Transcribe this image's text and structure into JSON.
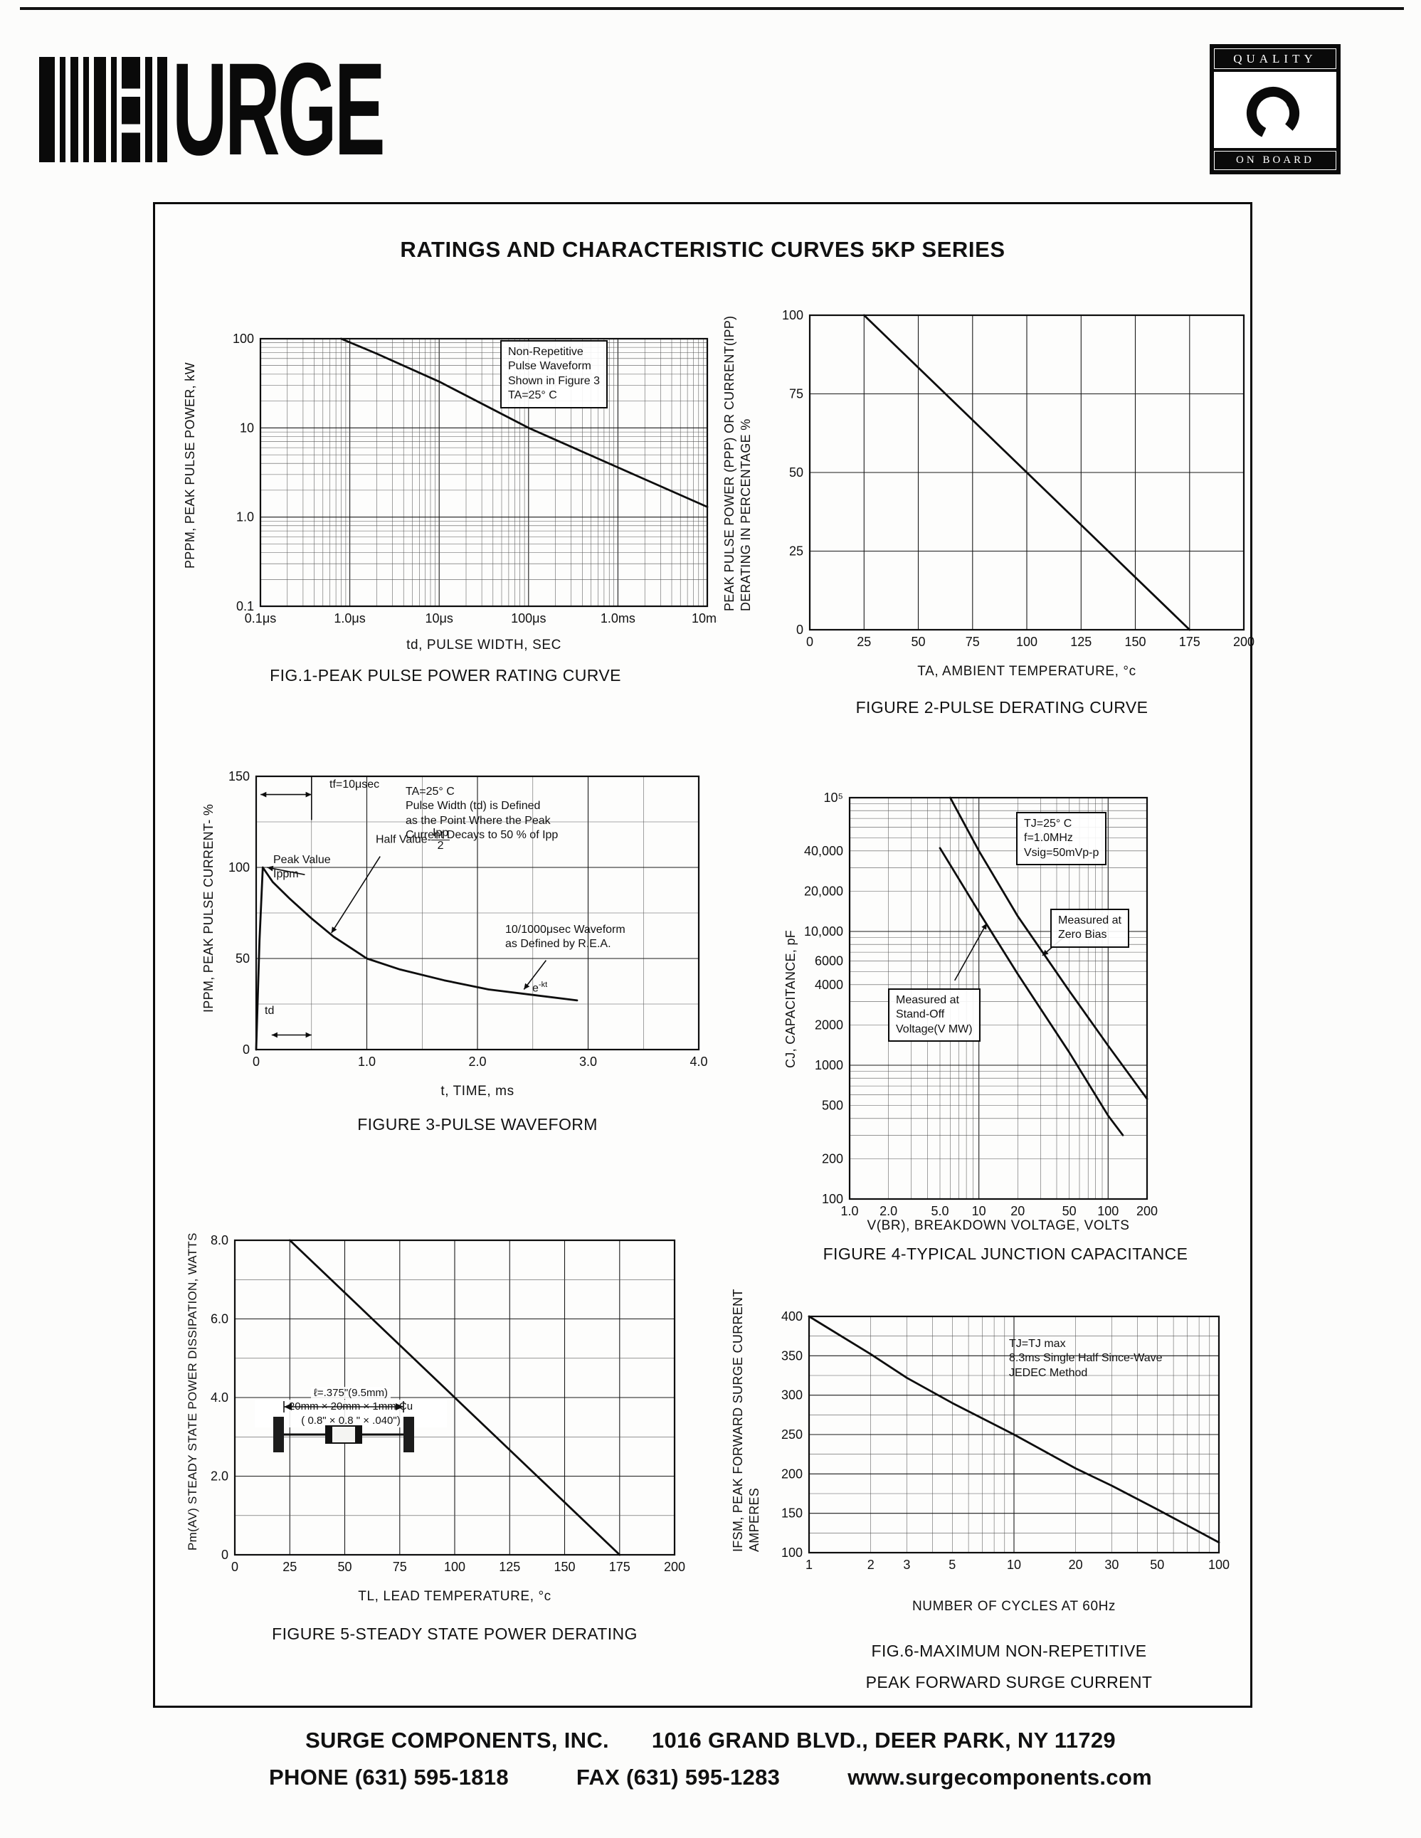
{
  "page": {
    "title": "RATINGS AND CHARACTERISTIC CURVES 5KP SERIES"
  },
  "colors": {
    "ink": "#111111",
    "paper": "#fcfcfb"
  },
  "header": {
    "logo_text": "URGE",
    "quality_badge": {
      "top": "QUALITY",
      "bottom": "ON BOARD"
    }
  },
  "footer": {
    "company": "SURGE COMPONENTS, INC.",
    "address": "1016 GRAND BLVD., DEER PARK, NY  11729",
    "phone": "PHONE (631) 595-1818",
    "fax": "FAX (631) 595-1283",
    "website": "www.surgecomponents.com"
  },
  "figures": {
    "fig1": {
      "caption": "FIG.1-PEAK PULSE POWER RATING CURVE",
      "xlabel": "td, PULSE WIDTH, SEC",
      "ylabel": "PPPM, PEAK PULSE POWER, kW",
      "note": "Non-Repetitive\nPulse Waveform\nShown in Figure 3\nTA=25° C"
    },
    "fig2": {
      "caption": "FIGURE 2-PULSE DERATING CURVE",
      "xlabel": "TA, AMBIENT  TEMPERATURE, °c",
      "ylabel": "PEAK PULSE POWER (PPP) OR CURRENT(IPP)\nDERATING IN PERCENTAGE %"
    },
    "fig3": {
      "caption": "FIGURE 3-PULSE WAVEFORM",
      "xlabel": "t, TIME, ms",
      "ylabel": "IPPM, PEAK PULSE CURRENT- %",
      "tf_label": "tf=10μsec",
      "peak_label": "Peak Value\nIppm",
      "half_label_prefix": "Half Value-",
      "half_label_num": "Ipp",
      "half_label_den": "2",
      "definition_note": "TA=25° C\nPulse Width (td) is Defined\nas the Point Where the Peak\nCurrent Decays to 50 % of Ipp",
      "rea_note": "10/1000μsec Waveform\nas Defined by R.E.A.",
      "ekt_base": "e",
      "ekt_sup": "-kt",
      "td_label": "td"
    },
    "fig4": {
      "caption": "FIGURE 4-TYPICAL JUNCTION CAPACITANCE",
      "xlabel": "V(BR), BREAKDOWN  VOLTAGE, VOLTS",
      "ylabel": "CJ, CAPACITANCE, pF",
      "conditions_note": "TJ=25° C\nf=1.0MHz\nVsig=50mVp-p",
      "zero_bias_label": "Measured at\nZero Bias",
      "standoff_label": "Measured at\nStand-Off\nVoltage(V MW)"
    },
    "fig5": {
      "caption": "FIGURE 5-STEADY STATE POWER DERATING",
      "xlabel": "TL, LEAD  TEMPERATURE, °c",
      "ylabel": "Pm(AV) STEADY STATE POWER DISSIPATION, WATTS",
      "lead_length_label": "ℓ=.375\"(9.5mm)",
      "cu_label": "20mm × 20mm × 1mm Cu\n( 0.8\" ×  0.8 \" × .040\")"
    },
    "fig6": {
      "caption_line1": "FIG.6-MAXIMUM NON-REPETITIVE",
      "caption_line2": "PEAK FORWARD SURGE CURRENT",
      "xlabel": "NUMBER  OF  CYCLES  AT  60Hz",
      "ylabel": "IFSM, PEAK FORWARD SURGE CURRENT\nAMPERES",
      "conditions_note": "TJ=TJ max\n8.3ms Single Half Since-Wave\nJEDEC Method"
    }
  },
  "chart_data": [
    {
      "id": "fig1",
      "type": "line",
      "title": "FIG.1-PEAK PULSE POWER RATING CURVE",
      "xlabel": "td, PULSE WIDTH, SEC",
      "ylabel": "PPPM, PEAK PULSE POWER, kW",
      "annotations": [
        "Non-Repetitive Pulse Waveform Shown in Figure 3 TA=25° C"
      ],
      "x": {
        "type": "log",
        "min": 0.1,
        "max": 10000,
        "unit": "μs",
        "ticks": [
          {
            "v": 0.1,
            "label": "0.1μs"
          },
          {
            "v": 1,
            "label": "1.0μs"
          },
          {
            "v": 10,
            "label": "10μs"
          },
          {
            "v": 100,
            "label": "100μs"
          },
          {
            "v": 1000,
            "label": "1.0ms"
          },
          {
            "v": 10000,
            "label": "10ms"
          }
        ]
      },
      "y": {
        "type": "log",
        "min": 0.1,
        "max": 100,
        "ticks": [
          {
            "v": 100,
            "label": "100"
          },
          {
            "v": 10,
            "label": "10"
          },
          {
            "v": 1,
            "label": "1.0"
          },
          {
            "v": 0.1,
            "label": "0.1"
          }
        ]
      },
      "series": [
        {
          "name": "peak-pulse-power",
          "points": [
            [
              0.8,
              100
            ],
            [
              2,
              68
            ],
            [
              10,
              33
            ],
            [
              100,
              10
            ],
            [
              1000,
              3.6
            ],
            [
              10000,
              1.3
            ]
          ]
        }
      ]
    },
    {
      "id": "fig2",
      "type": "line",
      "title": "FIGURE 2-PULSE DERATING CURVE",
      "xlabel": "TA, AMBIENT TEMPERATURE, °c",
      "ylabel": "PEAK PULSE POWER (PPP) OR CURRENT(IPP) DERATING IN PERCENTAGE %",
      "x": {
        "type": "linear",
        "min": 0,
        "max": 200,
        "grid": 25,
        "ticks": [
          {
            "v": 0,
            "label": "0"
          },
          {
            "v": 25,
            "label": "25"
          },
          {
            "v": 50,
            "label": "50"
          },
          {
            "v": 75,
            "label": "75"
          },
          {
            "v": 100,
            "label": "100"
          },
          {
            "v": 125,
            "label": "125"
          },
          {
            "v": 150,
            "label": "150"
          },
          {
            "v": 175,
            "label": "175"
          },
          {
            "v": 200,
            "label": "200"
          }
        ]
      },
      "y": {
        "type": "linear",
        "min": 0,
        "max": 100,
        "grid": 25,
        "ticks": [
          {
            "v": 0,
            "label": "0"
          },
          {
            "v": 25,
            "label": "25"
          },
          {
            "v": 50,
            "label": "50"
          },
          {
            "v": 75,
            "label": "75"
          },
          {
            "v": 100,
            "label": "100"
          }
        ]
      },
      "series": [
        {
          "name": "pulse-derating",
          "points": [
            [
              25,
              100
            ],
            [
              175,
              0
            ]
          ]
        }
      ]
    },
    {
      "id": "fig3",
      "type": "line",
      "title": "FIGURE 3-PULSE WAVEFORM",
      "xlabel": "t, TIME, ms",
      "ylabel": "IPPM, PEAK PULSE CURRENT- %",
      "annotations": [
        "tf=10μsec",
        "Peak Value Ippm",
        "Half Value-Ipp/2",
        "TA=25° C Pulse Width (td) is Defined as the Point Where the Peak Current Decays to 50 % of Ipp",
        "10/1000μsec Waveform as Defined by R.E.A.",
        "e-kt",
        "td"
      ],
      "x": {
        "type": "linear",
        "min": 0,
        "max": 4,
        "grid": 0.5,
        "majorEvery": 2,
        "ticks": [
          {
            "v": 0,
            "label": "0"
          },
          {
            "v": 1,
            "label": "1.0"
          },
          {
            "v": 2,
            "label": "2.0"
          },
          {
            "v": 3,
            "label": "3.0"
          },
          {
            "v": 4,
            "label": "4.0"
          }
        ]
      },
      "y": {
        "type": "linear",
        "min": 0,
        "max": 150,
        "grid": 25,
        "majorEvery": 2,
        "ticks": [
          {
            "v": 0,
            "label": "0"
          },
          {
            "v": 50,
            "label": "50"
          },
          {
            "v": 100,
            "label": "100"
          },
          {
            "v": 150,
            "label": "150"
          }
        ]
      },
      "series": [
        {
          "name": "pulse-waveform",
          "points": [
            [
              0,
              0
            ],
            [
              0.03,
              60
            ],
            [
              0.06,
              100
            ],
            [
              0.15,
              92
            ],
            [
              0.3,
              83
            ],
            [
              0.5,
              72
            ],
            [
              0.7,
              62
            ],
            [
              1.0,
              50
            ],
            [
              1.3,
              44
            ],
            [
              1.7,
              38
            ],
            [
              2.1,
              33
            ],
            [
              2.5,
              30
            ],
            [
              2.9,
              27
            ]
          ]
        }
      ],
      "decorations": [
        {
          "x1": 0.04,
          "y1": 140,
          "x2": 0.5,
          "y2": 140,
          "a1": true,
          "a2": true
        },
        {
          "x1": 0.5,
          "y1": 150,
          "x2": 0.5,
          "y2": 126
        },
        {
          "x1": 0.44,
          "y1": 96,
          "x2": 0.1,
          "y2": 100,
          "a2": true
        },
        {
          "x1": 1.12,
          "y1": 106,
          "x2": 0.68,
          "y2": 64,
          "a2": true
        },
        {
          "x1": 0.14,
          "y1": 8,
          "x2": 0.5,
          "y2": 8,
          "a1": true,
          "a2": true
        },
        {
          "x1": 2.62,
          "y1": 49,
          "x2": 2.42,
          "y2": 33,
          "a2": true
        }
      ]
    },
    {
      "id": "fig4",
      "type": "line",
      "title": "FIGURE 4-TYPICAL JUNCTION CAPACITANCE",
      "xlabel": "V(BR), BREAKDOWN VOLTAGE, VOLTS",
      "ylabel": "CJ, CAPACITANCE, pF",
      "annotations": [
        "TJ=25° C f=1.0MHz Vsig=50mVp-p",
        "Measured at Zero Bias",
        "Measured at Stand-Off Voltage(V MW)"
      ],
      "x": {
        "type": "log",
        "min": 1,
        "max": 200,
        "ticks": [
          {
            "v": 1,
            "label": "1.0"
          },
          {
            "v": 2,
            "label": "2.0"
          },
          {
            "v": 5,
            "label": "5.0"
          },
          {
            "v": 10,
            "label": "10"
          },
          {
            "v": 20,
            "label": "20"
          },
          {
            "v": 50,
            "label": "50"
          },
          {
            "v": 100,
            "label": "100"
          },
          {
            "v": 200,
            "label": "200"
          }
        ]
      },
      "y": {
        "type": "log",
        "min": 100,
        "max": 100000,
        "ticks": [
          {
            "v": 100000,
            "label": "10⁵"
          },
          {
            "v": 40000,
            "label": "40,000"
          },
          {
            "v": 20000,
            "label": "20,000"
          },
          {
            "v": 10000,
            "label": "10,000"
          },
          {
            "v": 6000,
            "label": "6000"
          },
          {
            "v": 4000,
            "label": "4000"
          },
          {
            "v": 2000,
            "label": "2000"
          },
          {
            "v": 1000,
            "label": "1000"
          },
          {
            "v": 500,
            "label": "500"
          },
          {
            "v": 200,
            "label": "200"
          },
          {
            "v": 100,
            "label": "100"
          }
        ]
      },
      "series": [
        {
          "name": "measured-at-zero-bias",
          "points": [
            [
              6,
              100000
            ],
            [
              10,
              40000
            ],
            [
              20,
              13000
            ],
            [
              50,
              3600
            ],
            [
              100,
              1400
            ],
            [
              200,
              560
            ]
          ]
        },
        {
          "name": "measured-at-standoff-voltage",
          "points": [
            [
              5,
              42000
            ],
            [
              10,
              14000
            ],
            [
              20,
              4800
            ],
            [
              50,
              1250
            ],
            [
              100,
              420
            ],
            [
              130,
              300
            ]
          ]
        }
      ],
      "decorations": [
        {
          "x1": 45,
          "y1": 9000,
          "x2": 31,
          "y2": 6600,
          "a2": true
        },
        {
          "x1": 6.5,
          "y1": 4300,
          "x2": 11.5,
          "y2": 11500,
          "a2": true
        }
      ]
    },
    {
      "id": "fig5",
      "type": "line",
      "title": "FIGURE 5-STEADY STATE POWER DERATING",
      "xlabel": "TL, LEAD TEMPERATURE, °c",
      "ylabel": "Pm(AV) STEADY STATE POWER DISSIPATION, WATTS",
      "annotations": [
        "ℓ=.375\"(9.5mm)",
        "20mm × 20mm × 1mm Cu ( 0.8\" × 0.8\" × .040\")"
      ],
      "x": {
        "type": "linear",
        "min": 0,
        "max": 200,
        "grid": 25,
        "ticks": [
          {
            "v": 0,
            "label": "0"
          },
          {
            "v": 25,
            "label": "25"
          },
          {
            "v": 50,
            "label": "50"
          },
          {
            "v": 75,
            "label": "75"
          },
          {
            "v": 100,
            "label": "100"
          },
          {
            "v": 125,
            "label": "125"
          },
          {
            "v": 150,
            "label": "150"
          },
          {
            "v": 175,
            "label": "175"
          },
          {
            "v": 200,
            "label": "200"
          }
        ]
      },
      "y": {
        "type": "linear",
        "min": 0,
        "max": 8,
        "grid": 1,
        "majorEvery": 2,
        "ticks": [
          {
            "v": 0,
            "label": "0"
          },
          {
            "v": 2,
            "label": "2.0"
          },
          {
            "v": 4,
            "label": "4.0"
          },
          {
            "v": 6,
            "label": "6.0"
          },
          {
            "v": 8,
            "label": "8.0"
          }
        ]
      },
      "series": [
        {
          "name": "steady-state-power",
          "points": [
            [
              25,
              8
            ],
            [
              175,
              0
            ]
          ]
        }
      ]
    },
    {
      "id": "fig6",
      "type": "line",
      "title": "FIG.6-MAXIMUM NON-REPETITIVE PEAK FORWARD SURGE CURRENT",
      "xlabel": "NUMBER OF CYCLES AT 60Hz",
      "ylabel": "IFSM, PEAK FORWARD SURGE CURRENT AMPERES",
      "annotations": [
        "TJ=TJ max 8.3ms Single Half Since-Wave JEDEC Method"
      ],
      "x": {
        "type": "log",
        "min": 1,
        "max": 100,
        "ticks": [
          {
            "v": 1,
            "label": "1"
          },
          {
            "v": 2,
            "label": "2"
          },
          {
            "v": 3,
            "label": "3"
          },
          {
            "v": 5,
            "label": "5"
          },
          {
            "v": 10,
            "label": "10"
          },
          {
            "v": 20,
            "label": "20"
          },
          {
            "v": 30,
            "label": "30"
          },
          {
            "v": 50,
            "label": "50"
          },
          {
            "v": 100,
            "label": "100"
          }
        ]
      },
      "y": {
        "type": "linear",
        "min": 100,
        "max": 400,
        "grid": 25,
        "majorEvery": 2,
        "ticks": [
          {
            "v": 100,
            "label": "100"
          },
          {
            "v": 150,
            "label": "150"
          },
          {
            "v": 200,
            "label": "200"
          },
          {
            "v": 250,
            "label": "250"
          },
          {
            "v": 300,
            "label": "300"
          },
          {
            "v": 350,
            "label": "350"
          },
          {
            "v": 400,
            "label": "400"
          }
        ]
      },
      "series": [
        {
          "name": "peak-forward-surge-current",
          "points": [
            [
              1,
              400
            ],
            [
              2,
              352
            ],
            [
              3,
              322
            ],
            [
              5,
              290
            ],
            [
              10,
              250
            ],
            [
              20,
              207
            ],
            [
              30,
              185
            ],
            [
              50,
              155
            ],
            [
              100,
              113
            ]
          ]
        }
      ]
    }
  ]
}
